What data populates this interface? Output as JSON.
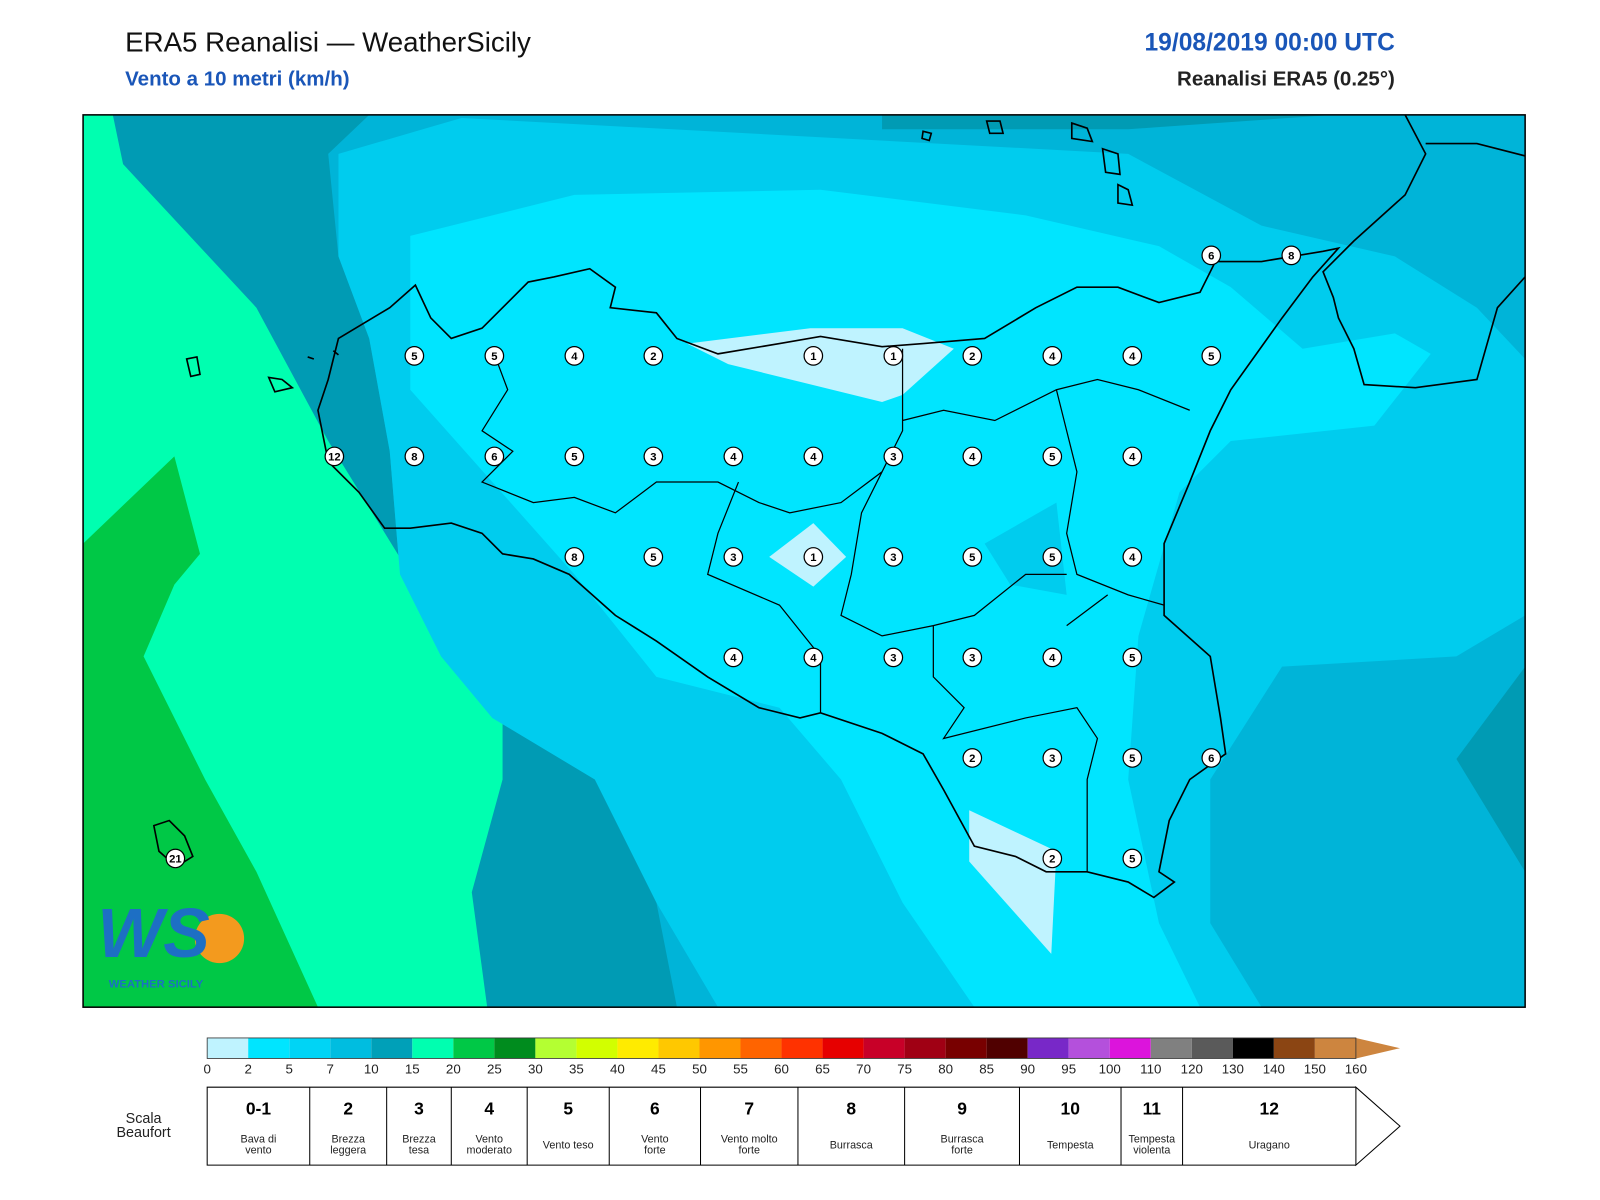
{
  "header": {
    "title": "ERA5 Reanalisi — WeatherSicily",
    "subtitle": "Vento a 10 metri (km/h)",
    "date": "19/08/2019 00:00 UTC",
    "source": "Reanalisi ERA5 (0.25°)"
  },
  "stations": [
    5,
    5,
    4,
    2,
    1,
    1,
    2,
    4,
    4,
    5,
    12,
    8,
    6,
    5,
    3,
    4,
    4,
    3,
    4,
    5,
    4,
    8,
    5,
    3,
    1,
    3,
    5,
    5,
    4,
    4,
    4,
    3,
    3,
    4,
    5,
    2,
    3,
    5,
    6,
    2,
    5,
    6,
    8,
    21
  ],
  "colorbar": {
    "ticks": [
      0,
      2,
      5,
      7,
      10,
      15,
      20,
      25,
      30,
      35,
      40,
      45,
      50,
      55,
      60,
      65,
      70,
      75,
      80,
      85,
      90,
      95,
      100,
      110,
      120,
      130,
      140,
      150,
      160
    ],
    "colors": [
      "#bff3ff",
      "#00e5ff",
      "#00d4f5",
      "#00bde0",
      "#00a0b8",
      "#00ffb0",
      "#00c846",
      "#008c1e",
      "#b4ff32",
      "#d2ff00",
      "#ffeb00",
      "#ffc800",
      "#ff9600",
      "#ff6400",
      "#ff3200",
      "#e60000",
      "#c80028",
      "#a00014",
      "#780000",
      "#500000",
      "#7828c8",
      "#b450dc",
      "#dc14dc",
      "#808080",
      "#5a5a5a",
      "#000000",
      "#8b4513",
      "#cd853f"
    ],
    "arrow_color": "#cd853f"
  },
  "beaufort": {
    "title": [
      "Scala",
      "Beaufort"
    ],
    "levels": [
      {
        "force": "0-1",
        "label": [
          "Bava di",
          "vento"
        ]
      },
      {
        "force": "2",
        "label": [
          "Brezza",
          "leggera"
        ]
      },
      {
        "force": "3",
        "label": [
          "Brezza",
          "tesa"
        ]
      },
      {
        "force": "4",
        "label": [
          "Vento",
          "moderato"
        ]
      },
      {
        "force": "5",
        "label": [
          "Vento teso"
        ]
      },
      {
        "force": "6",
        "label": [
          "Vento",
          "forte"
        ]
      },
      {
        "force": "7",
        "label": [
          "Vento molto",
          "forte"
        ]
      },
      {
        "force": "8",
        "label": [
          "Burrasca"
        ]
      },
      {
        "force": "9",
        "label": [
          "Burrasca",
          "forte"
        ]
      },
      {
        "force": "10",
        "label": [
          "Tempesta"
        ]
      },
      {
        "force": "11",
        "label": [
          "Tempesta",
          "violenta"
        ]
      },
      {
        "force": "12",
        "label": [
          "Uragano"
        ]
      }
    ]
  },
  "logo": {
    "mark": "WS",
    "name": "WEATHER SICILY"
  }
}
